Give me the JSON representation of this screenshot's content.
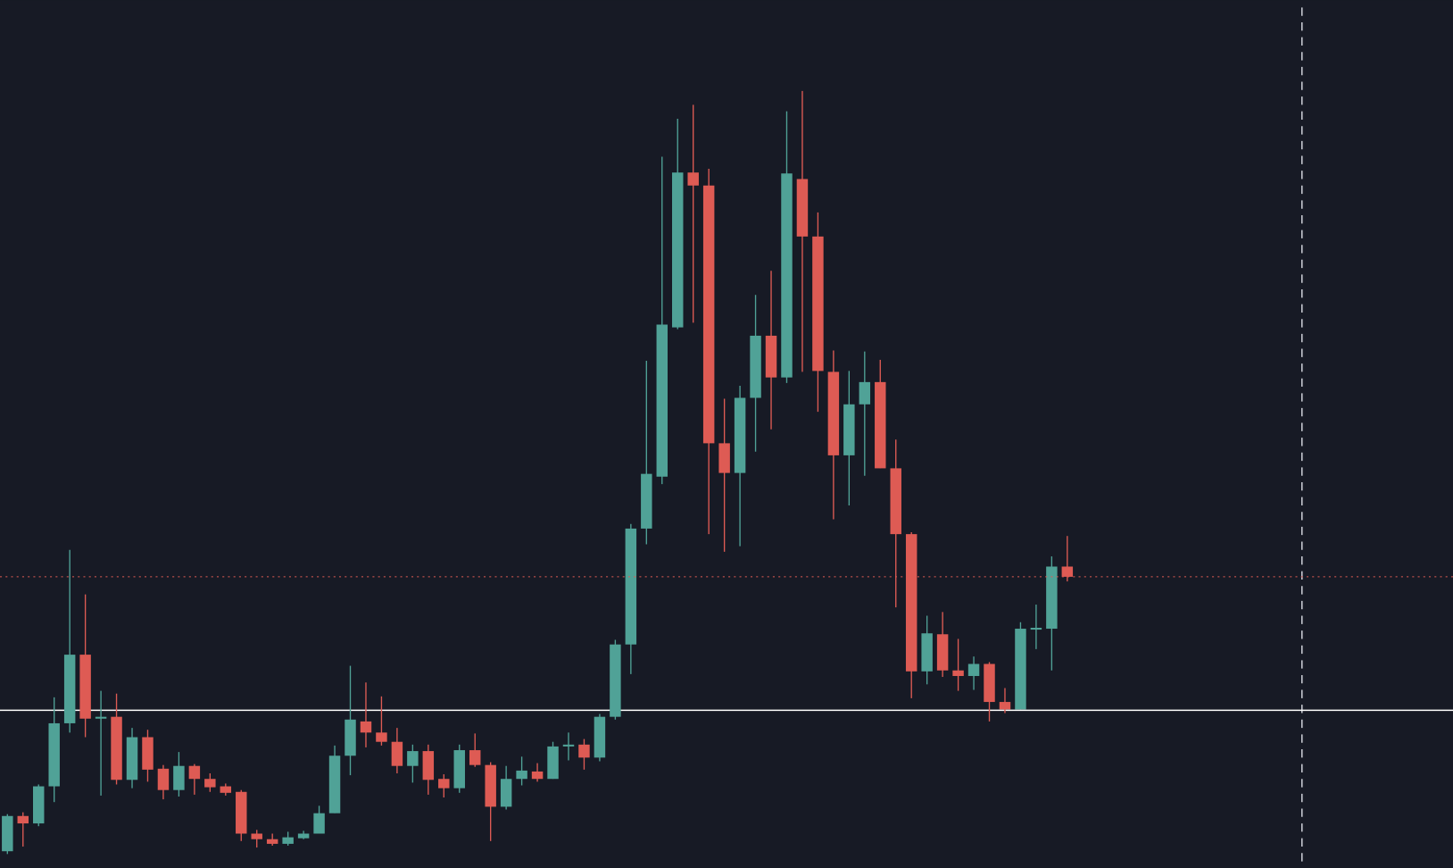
{
  "chart_data": {
    "type": "candlestick",
    "up_color": "#50a297",
    "down_color": "#de5b54",
    "hline_color": "#ffffff",
    "ylim": [
      0,
      936
    ],
    "hlines": [
      170
    ],
    "open": [
      18,
      56,
      48,
      88,
      156,
      230,
      161,
      163,
      95,
      141,
      107,
      84,
      110,
      96,
      88,
      82,
      37,
      31,
      26,
      32,
      37,
      59,
      121,
      158,
      146,
      136,
      110,
      126,
      96,
      86,
      127,
      111,
      66,
      96,
      104,
      96,
      131,
      133,
      119,
      163,
      241,
      366,
      422,
      583,
      750,
      736,
      458,
      426,
      507,
      574,
      529,
      743,
      681,
      535,
      445,
      500,
      524,
      431,
      360,
      212,
      252,
      213,
      207,
      220,
      179,
      171,
      257,
      258,
      325
    ],
    "high": [
      58,
      60,
      90,
      184,
      343,
      295,
      191,
      188,
      151,
      149,
      111,
      125,
      112,
      102,
      91,
      84,
      41,
      37,
      39,
      40,
      67,
      132,
      218,
      200,
      185,
      151,
      133,
      133,
      101,
      133,
      145,
      114,
      110,
      120,
      113,
      136,
      146,
      139,
      166,
      246,
      371,
      547,
      767,
      808,
      823,
      754,
      506,
      520,
      618,
      644,
      816,
      838,
      707,
      558,
      536,
      557,
      548,
      462,
      362,
      272,
      276,
      247,
      228,
      222,
      194,
      265,
      284,
      336,
      358
    ],
    "low": [
      15,
      23,
      45,
      71,
      146,
      141,
      78,
      90,
      86,
      93,
      74,
      77,
      79,
      82,
      78,
      29,
      22,
      24,
      24,
      31,
      37,
      59,
      100,
      130,
      132,
      102,
      92,
      79,
      76,
      81,
      109,
      29,
      63,
      89,
      93,
      96,
      116,
      106,
      115,
      160,
      209,
      349,
      414,
      581,
      588,
      360,
      341,
      347,
      449,
      473,
      523,
      535,
      492,
      376,
      391,
      423,
      431,
      281,
      183,
      198,
      206,
      191,
      192,
      158,
      167,
      171,
      236,
      213,
      309
    ],
    "close": [
      56,
      48,
      88,
      156,
      230,
      161,
      163,
      95,
      141,
      106,
      84,
      110,
      96,
      87,
      81,
      37,
      31,
      26,
      33,
      37,
      59,
      121,
      160,
      146,
      136,
      110,
      126,
      95,
      86,
      127,
      111,
      66,
      96,
      105,
      96,
      131,
      133,
      119,
      163,
      241,
      366,
      425,
      586,
      750,
      736,
      458,
      426,
      507,
      574,
      529,
      749,
      681,
      536,
      445,
      500,
      524,
      431,
      360,
      212,
      253,
      213,
      207,
      220,
      179,
      171,
      258,
      259,
      325,
      314
    ]
  }
}
